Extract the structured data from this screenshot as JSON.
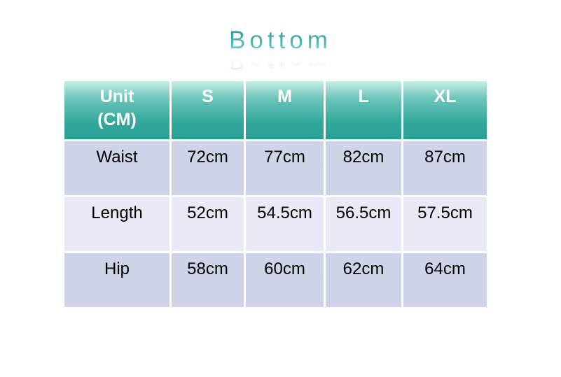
{
  "page": {
    "title": "Bottom"
  },
  "colors": {
    "header_gradient_top": "#c9ede7",
    "header_gradient_bottom": "#27a094",
    "row_odd_bg": "#ced3e8",
    "row_even_bg": "#e7e9f5",
    "header_text": "#ffffff",
    "body_text": "#000000",
    "title_gradient_top": "#2d9396",
    "title_gradient_bottom": "#7ad2cc"
  },
  "table": {
    "headers": [
      "Unit\n(CM)",
      "S",
      "M",
      "L",
      "XL"
    ],
    "rows": [
      {
        "label": "Waist",
        "values": [
          "72cm",
          "77cm",
          "82cm",
          "87cm"
        ]
      },
      {
        "label": "Length",
        "values": [
          "52cm",
          "54.5cm",
          "56.5cm",
          "57.5cm"
        ]
      },
      {
        "label": "Hip",
        "values": [
          "58cm",
          "60cm",
          "62cm",
          "64cm"
        ]
      }
    ]
  },
  "chart_data": {
    "type": "table",
    "title": "Bottom",
    "columns": [
      "Unit (CM)",
      "S",
      "M",
      "L",
      "XL"
    ],
    "rows": [
      [
        "Waist",
        "72cm",
        "77cm",
        "82cm",
        "87cm"
      ],
      [
        "Length",
        "52cm",
        "54.5cm",
        "56.5cm",
        "57.5cm"
      ],
      [
        "Hip",
        "58cm",
        "60cm",
        "62cm",
        "64cm"
      ]
    ]
  }
}
